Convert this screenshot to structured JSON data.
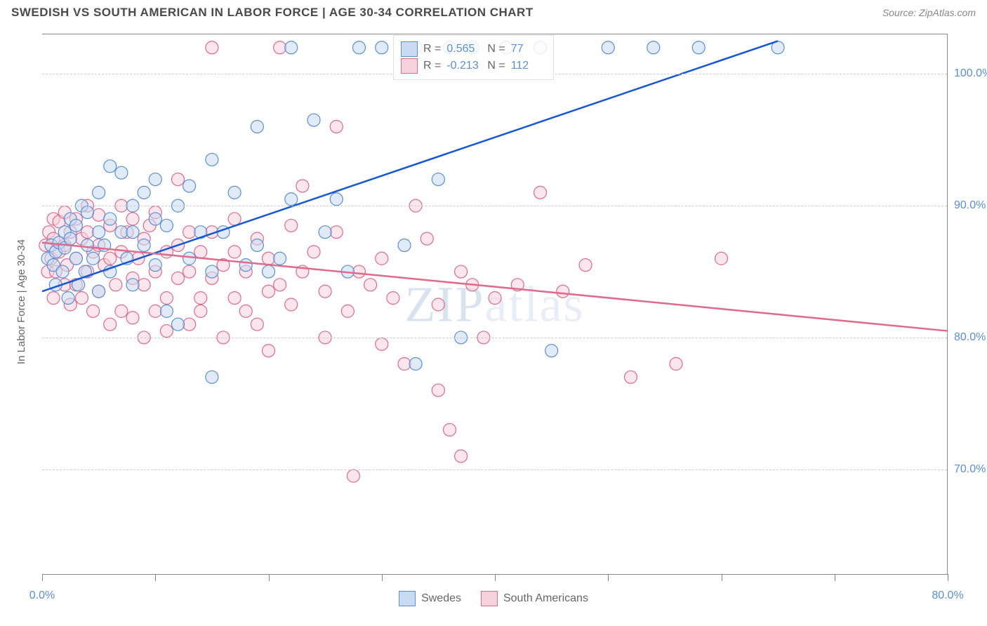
{
  "title": "SWEDISH VS SOUTH AMERICAN IN LABOR FORCE | AGE 30-34 CORRELATION CHART",
  "source": "Source: ZipAtlas.com",
  "y_axis_label": "In Labor Force | Age 30-34",
  "watermark_a": "ZIP",
  "watermark_b": "atlas",
  "chart": {
    "type": "scatter",
    "xlim": [
      0,
      80
    ],
    "ylim": [
      62,
      103
    ],
    "y_ticks": [
      70,
      80,
      90,
      100
    ],
    "y_tick_labels": [
      "70.0%",
      "80.0%",
      "90.0%",
      "100.0%"
    ],
    "x_ticks": [
      0,
      10,
      20,
      30,
      40,
      50,
      60,
      70,
      80
    ],
    "x_tick_labels_shown": {
      "0": "0.0%",
      "80": "80.0%"
    },
    "background_color": "#ffffff",
    "grid_color": "#cccccc",
    "marker_radius": 9,
    "marker_stroke_width": 1.2,
    "line_width": 2.5,
    "series": [
      {
        "name": "Swedes",
        "fill": "#c9dbf2",
        "stroke": "#5a8fd6",
        "fill_opacity": 0.55,
        "R": "0.565",
        "N": "77",
        "trend_color": "#1558d6",
        "trend": {
          "x1": 0,
          "y1": 83.5,
          "x2": 65,
          "y2": 102.5
        },
        "points": [
          [
            0.5,
            86
          ],
          [
            0.8,
            87
          ],
          [
            1,
            85.5
          ],
          [
            1.2,
            84
          ],
          [
            1.2,
            86.5
          ],
          [
            1.5,
            87.2
          ],
          [
            1.8,
            85
          ],
          [
            2,
            86.8
          ],
          [
            2,
            88
          ],
          [
            2.3,
            83
          ],
          [
            2.5,
            87.5
          ],
          [
            2.5,
            89
          ],
          [
            3,
            86
          ],
          [
            3,
            88.5
          ],
          [
            3.2,
            84
          ],
          [
            3.5,
            90
          ],
          [
            3.8,
            85
          ],
          [
            4,
            89.5
          ],
          [
            4,
            87
          ],
          [
            4.5,
            86
          ],
          [
            5,
            91
          ],
          [
            5,
            88
          ],
          [
            5,
            83.5
          ],
          [
            5.5,
            87
          ],
          [
            6,
            89
          ],
          [
            6,
            85
          ],
          [
            6,
            93
          ],
          [
            7,
            88
          ],
          [
            7,
            92.5
          ],
          [
            7.5,
            86
          ],
          [
            8,
            90
          ],
          [
            8,
            88
          ],
          [
            8,
            84
          ],
          [
            9,
            91
          ],
          [
            9,
            87
          ],
          [
            10,
            89
          ],
          [
            10,
            92
          ],
          [
            10,
            85.5
          ],
          [
            11,
            88.5
          ],
          [
            11,
            82
          ],
          [
            12,
            81
          ],
          [
            12,
            90
          ],
          [
            13,
            91.5
          ],
          [
            13,
            86
          ],
          [
            14,
            88
          ],
          [
            15,
            77
          ],
          [
            15,
            85
          ],
          [
            15,
            93.5
          ],
          [
            16,
            88
          ],
          [
            17,
            91
          ],
          [
            18,
            85.5
          ],
          [
            19,
            96
          ],
          [
            19,
            87
          ],
          [
            20,
            85
          ],
          [
            21,
            86
          ],
          [
            22,
            90.5
          ],
          [
            22,
            102
          ],
          [
            24,
            96.5
          ],
          [
            25,
            88
          ],
          [
            26,
            90.5
          ],
          [
            27,
            85
          ],
          [
            28,
            102
          ],
          [
            30,
            102
          ],
          [
            32,
            87
          ],
          [
            33,
            78
          ],
          [
            33,
            102
          ],
          [
            35,
            92
          ],
          [
            36,
            102
          ],
          [
            37,
            80
          ],
          [
            38,
            102
          ],
          [
            41,
            102
          ],
          [
            44,
            102
          ],
          [
            45,
            79
          ],
          [
            50,
            102
          ],
          [
            54,
            102
          ],
          [
            58,
            102
          ],
          [
            65,
            102
          ]
        ]
      },
      {
        "name": "South Americans",
        "fill": "#f6d2dc",
        "stroke": "#e06a8b",
        "fill_opacity": 0.55,
        "R": "-0.213",
        "N": "112",
        "trend_color": "#e06a8b",
        "trend": {
          "x1": 0,
          "y1": 87.2,
          "x2": 80,
          "y2": 80.5
        },
        "points": [
          [
            0.3,
            87
          ],
          [
            0.5,
            85
          ],
          [
            0.6,
            88
          ],
          [
            0.8,
            86
          ],
          [
            1,
            83
          ],
          [
            1,
            87.5
          ],
          [
            1,
            89
          ],
          [
            1.2,
            85
          ],
          [
            1.5,
            86.5
          ],
          [
            1.5,
            88.8
          ],
          [
            2,
            87
          ],
          [
            2,
            84
          ],
          [
            2,
            89.5
          ],
          [
            2.2,
            85.5
          ],
          [
            2.5,
            88
          ],
          [
            2.5,
            82.5
          ],
          [
            3,
            86
          ],
          [
            3,
            89
          ],
          [
            3,
            84
          ],
          [
            3.5,
            83
          ],
          [
            3.5,
            87.5
          ],
          [
            4,
            88
          ],
          [
            4,
            85
          ],
          [
            4,
            90
          ],
          [
            4.5,
            82
          ],
          [
            4.5,
            86.5
          ],
          [
            5,
            89.3
          ],
          [
            5,
            83.5
          ],
          [
            5,
            87
          ],
          [
            5.5,
            85.5
          ],
          [
            6,
            88.5
          ],
          [
            6,
            81
          ],
          [
            6,
            86
          ],
          [
            6.5,
            84
          ],
          [
            7,
            90
          ],
          [
            7,
            82
          ],
          [
            7,
            86.5
          ],
          [
            7.5,
            88
          ],
          [
            8,
            84.5
          ],
          [
            8,
            89
          ],
          [
            8,
            81.5
          ],
          [
            8.5,
            86
          ],
          [
            9,
            87.5
          ],
          [
            9,
            80
          ],
          [
            9,
            84
          ],
          [
            9.5,
            88.5
          ],
          [
            10,
            85
          ],
          [
            10,
            82
          ],
          [
            10,
            89.5
          ],
          [
            11,
            83
          ],
          [
            11,
            86.5
          ],
          [
            11,
            80.5
          ],
          [
            12,
            87
          ],
          [
            12,
            84.5
          ],
          [
            12,
            92
          ],
          [
            13,
            81
          ],
          [
            13,
            88
          ],
          [
            13,
            85
          ],
          [
            14,
            83
          ],
          [
            14,
            86.5
          ],
          [
            14,
            82
          ],
          [
            15,
            102
          ],
          [
            15,
            84.5
          ],
          [
            15,
            88
          ],
          [
            16,
            80
          ],
          [
            16,
            85.5
          ],
          [
            17,
            83
          ],
          [
            17,
            86.5
          ],
          [
            17,
            89
          ],
          [
            18,
            82
          ],
          [
            18,
            85
          ],
          [
            19,
            87.5
          ],
          [
            19,
            81
          ],
          [
            20,
            83.5
          ],
          [
            20,
            86
          ],
          [
            20,
            79
          ],
          [
            21,
            84
          ],
          [
            21,
            102
          ],
          [
            22,
            82.5
          ],
          [
            22,
            88.5
          ],
          [
            23,
            85
          ],
          [
            23,
            91.5
          ],
          [
            24,
            86.5
          ],
          [
            25,
            83.5
          ],
          [
            25,
            80
          ],
          [
            26,
            88
          ],
          [
            26,
            96
          ],
          [
            27,
            82
          ],
          [
            27.5,
            69.5
          ],
          [
            28,
            85
          ],
          [
            29,
            84
          ],
          [
            30,
            79.5
          ],
          [
            30,
            86
          ],
          [
            31,
            83
          ],
          [
            32,
            78
          ],
          [
            33,
            90
          ],
          [
            34,
            87.5
          ],
          [
            35,
            76
          ],
          [
            35,
            82.5
          ],
          [
            36,
            73
          ],
          [
            37,
            85
          ],
          [
            37,
            71
          ],
          [
            38,
            84
          ],
          [
            39,
            80
          ],
          [
            40,
            83
          ],
          [
            42,
            84
          ],
          [
            44,
            91
          ],
          [
            46,
            83.5
          ],
          [
            48,
            85.5
          ],
          [
            52,
            77
          ],
          [
            56,
            78
          ],
          [
            60,
            86
          ]
        ]
      }
    ]
  },
  "legend_bottom": {
    "series1_label": "Swedes",
    "series2_label": "South Americans"
  }
}
